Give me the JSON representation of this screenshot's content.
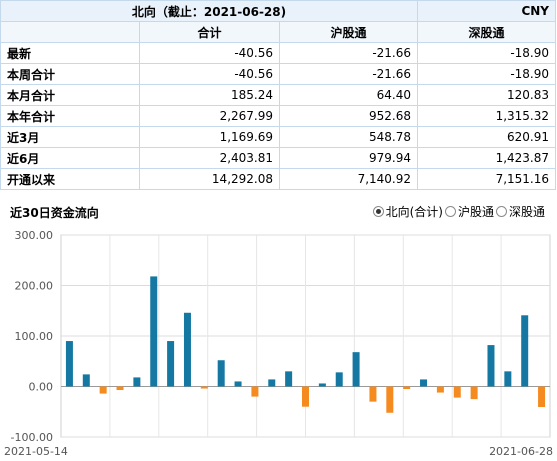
{
  "header": {
    "title": "北向（截止：2021-06-28)",
    "currency": "CNY"
  },
  "columns": [
    "合计",
    "沪股通",
    "深股通"
  ],
  "rows": [
    {
      "label": "最新",
      "values": [
        "-40.56",
        "-21.66",
        "-18.90"
      ]
    },
    {
      "label": "本周合计",
      "values": [
        "-40.56",
        "-21.66",
        "-18.90"
      ]
    },
    {
      "label": "本月合计",
      "values": [
        "185.24",
        "64.40",
        "120.83"
      ]
    },
    {
      "label": "本年合计",
      "values": [
        "2,267.99",
        "952.68",
        "1,315.32"
      ]
    },
    {
      "label": "近3月",
      "values": [
        "1,169.69",
        "548.78",
        "620.91"
      ]
    },
    {
      "label": "近6月",
      "values": [
        "2,403.81",
        "979.94",
        "1,423.87"
      ]
    },
    {
      "label": "开通以来",
      "values": [
        "14,292.08",
        "7,140.92",
        "7,151.16"
      ]
    }
  ],
  "chart_section": {
    "title": "近30日资金流向",
    "options": [
      {
        "label": "北向(合计)",
        "selected": true
      },
      {
        "label": "沪股通",
        "selected": false
      },
      {
        "label": "深股通",
        "selected": false
      }
    ]
  },
  "colors": {
    "positive": "#1478a3",
    "negative": "#f58a1f",
    "header_bg": "#e9f1fa",
    "border": "#c5d9ec"
  },
  "chart_data": {
    "type": "bar",
    "title": "",
    "xlabel": "",
    "ylabel": "",
    "ylim": [
      -100,
      300
    ],
    "yticks": [
      "300.00",
      "200.00",
      "100.00",
      "0.00",
      "-100.00"
    ],
    "x_start_label": "2021-05-14",
    "x_end_label": "2021-06-28",
    "grid": true,
    "values": [
      90,
      24,
      -14,
      -7,
      18,
      218,
      90,
      146,
      -4,
      52,
      10,
      -20,
      14,
      30,
      -40,
      6,
      28,
      68,
      -30,
      -52,
      -5,
      14,
      -12,
      -22,
      -25,
      82,
      30,
      141,
      -40.56
    ]
  }
}
